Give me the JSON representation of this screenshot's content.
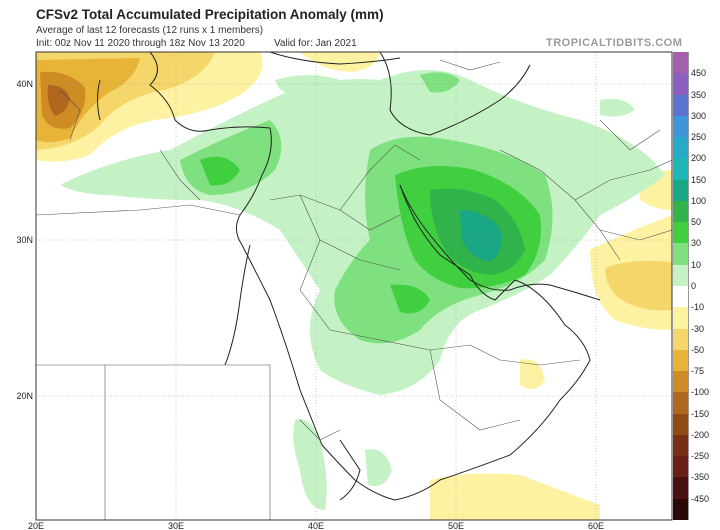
{
  "header": {
    "title": "CFSv2 Total Accumulated Precipitation Anomaly (mm)",
    "subtitle": "Average of last 12 forecasts (12 runs x 1 members)",
    "init": "Init: 00z Nov 11 2020 through 18z Nov 13 2020",
    "valid": "Valid for: Jan 2021",
    "site": "TROPICALTIDBITS.COM"
  },
  "axes": {
    "lat_labels": [
      "40N",
      "30N",
      "20N"
    ],
    "lon_labels": [
      "20E",
      "30E",
      "40E",
      "50E",
      "60E"
    ]
  },
  "legend": {
    "items": [
      {
        "label": "450",
        "color": "#a55fae"
      },
      {
        "label": "350",
        "color": "#8a5fbf"
      },
      {
        "label": "300",
        "color": "#5a74cf"
      },
      {
        "label": "250",
        "color": "#3f96d6"
      },
      {
        "label": "200",
        "color": "#26aac8"
      },
      {
        "label": "150",
        "color": "#1eb6b6"
      },
      {
        "label": "100",
        "color": "#1aa884"
      },
      {
        "label": "50",
        "color": "#2fb34a"
      },
      {
        "label": "30",
        "color": "#3fcf3f"
      },
      {
        "label": "10",
        "color": "#7fe07f"
      },
      {
        "label": "0",
        "color": "#c4f2c4"
      },
      {
        "label": "-10",
        "color": "#ffffff"
      },
      {
        "label": "-30",
        "color": "#fdf2a2"
      },
      {
        "label": "-50",
        "color": "#f5d66a"
      },
      {
        "label": "-75",
        "color": "#e8b438"
      },
      {
        "label": "-100",
        "color": "#cf8c25"
      },
      {
        "label": "-150",
        "color": "#b0661c"
      },
      {
        "label": "-200",
        "color": "#8f4a16"
      },
      {
        "label": "-250",
        "color": "#7a2e14"
      },
      {
        "label": "-350",
        "color": "#6a1f16"
      },
      {
        "label": "-450",
        "color": "#4a1010"
      },
      {
        "label": "",
        "color": "#2a0808"
      }
    ]
  }
}
